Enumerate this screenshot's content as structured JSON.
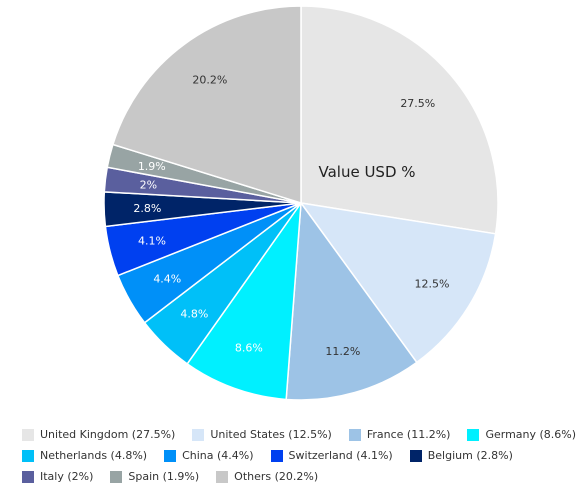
{
  "chart_data": {
    "type": "pie",
    "title": "Value USD %",
    "slices": [
      {
        "name": "United Kingdom",
        "value": 27.5,
        "label": "27.5%",
        "legend": "United Kingdom (27.5%)",
        "color": "#e6e6e6",
        "label_color": "#333333"
      },
      {
        "name": "United States",
        "value": 12.5,
        "label": "12.5%",
        "legend": "United States (12.5%)",
        "color": "#d6e6f8",
        "label_color": "#333333"
      },
      {
        "name": "France",
        "value": 11.2,
        "label": "11.2%",
        "legend": "France (11.2%)",
        "color": "#9dc3e6",
        "label_color": "#333333"
      },
      {
        "name": "Germany",
        "value": 8.6,
        "label": "8.6%",
        "legend": "Germany (8.6%)",
        "color": "#00f0ff",
        "label_color": "#ffffff"
      },
      {
        "name": "Netherlands",
        "value": 4.8,
        "label": "4.8%",
        "legend": "Netherlands (4.8%)",
        "color": "#00c0f8",
        "label_color": "#ffffff"
      },
      {
        "name": "China",
        "value": 4.4,
        "label": "4.4%",
        "legend": "China (4.4%)",
        "color": "#0090f8",
        "label_color": "#ffffff"
      },
      {
        "name": "Switzerland",
        "value": 4.1,
        "label": "4.1%",
        "legend": "Switzerland (4.1%)",
        "color": "#0040f0",
        "label_color": "#ffffff"
      },
      {
        "name": "Belgium",
        "value": 2.8,
        "label": "2.8%",
        "legend": "Belgium (2.8%)",
        "color": "#002468",
        "label_color": "#ffffff"
      },
      {
        "name": "Italy",
        "value": 2,
        "label": "2%",
        "legend": "Italy (2%)",
        "color": "#5a5f9e",
        "label_color": "#ffffff"
      },
      {
        "name": "Spain",
        "value": 1.9,
        "label": "1.9%",
        "legend": "Spain (1.9%)",
        "color": "#98a4a4",
        "label_color": "#ffffff"
      },
      {
        "name": "Others",
        "value": 20.2,
        "label": "20.2%",
        "legend": "Others (20.2%)",
        "color": "#c8c8c8",
        "label_color": "#333333"
      }
    ],
    "start_angle": "12 o'clock",
    "direction": "clockwise",
    "legend_position": "bottom"
  }
}
